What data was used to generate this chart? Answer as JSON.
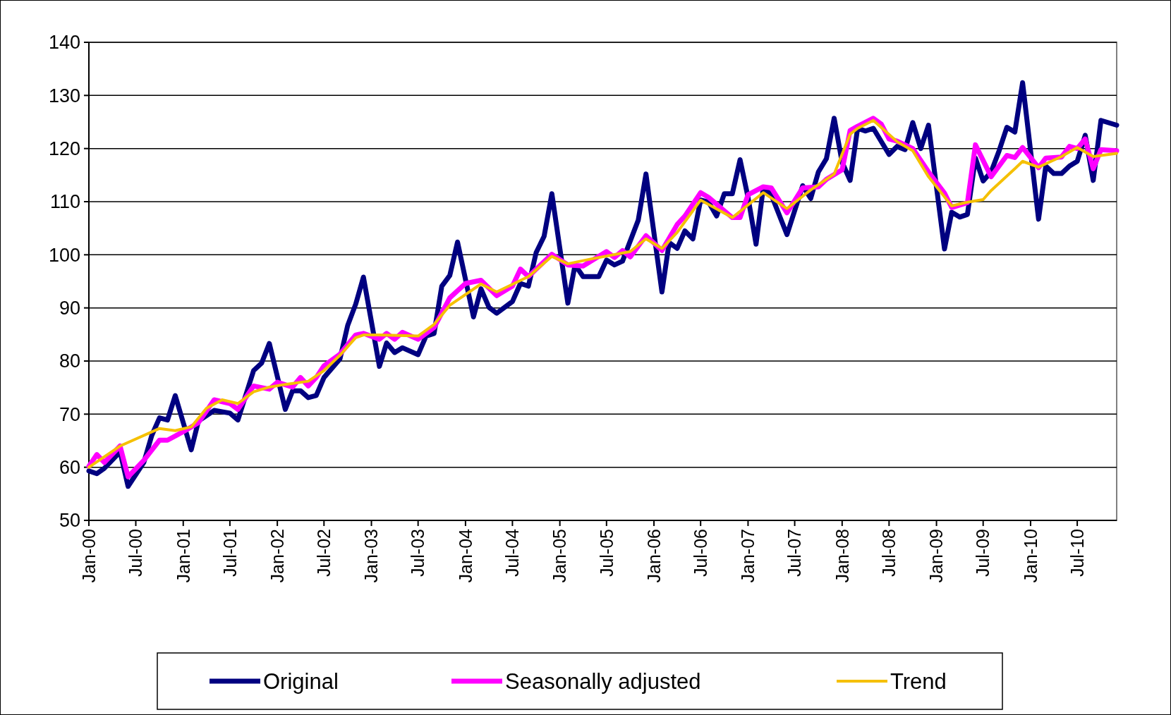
{
  "chart_data": {
    "type": "line",
    "xlim": [
      "2000-01",
      "2010-12"
    ],
    "xticks": [
      {
        "value": "2000-01",
        "label": "Jan-00"
      },
      {
        "value": "2000-07",
        "label": "Jul-00"
      },
      {
        "value": "2001-01",
        "label": "Jan-01"
      },
      {
        "value": "2001-07",
        "label": "Jul-01"
      },
      {
        "value": "2002-01",
        "label": "Jan-02"
      },
      {
        "value": "2002-07",
        "label": "Jul-02"
      },
      {
        "value": "2003-01",
        "label": "Jan-03"
      },
      {
        "value": "2003-07",
        "label": "Jul-03"
      },
      {
        "value": "2004-01",
        "label": "Jan-04"
      },
      {
        "value": "2004-07",
        "label": "Jul-04"
      },
      {
        "value": "2005-01",
        "label": "Jan-05"
      },
      {
        "value": "2005-07",
        "label": "Jul-05"
      },
      {
        "value": "2006-01",
        "label": "Jan-06"
      },
      {
        "value": "2006-07",
        "label": "Jul-06"
      },
      {
        "value": "2007-01",
        "label": "Jan-07"
      },
      {
        "value": "2007-07",
        "label": "Jul-07"
      },
      {
        "value": "2008-01",
        "label": "Jan-08"
      },
      {
        "value": "2008-07",
        "label": "Jul-08"
      },
      {
        "value": "2009-01",
        "label": "Jan-09"
      },
      {
        "value": "2009-07",
        "label": "Jul-09"
      },
      {
        "value": "2010-01",
        "label": "Jan-10"
      },
      {
        "value": "2010-07",
        "label": "Jul-10"
      }
    ],
    "ylim": [
      50,
      140
    ],
    "yticks": [
      50,
      60,
      70,
      80,
      90,
      100,
      110,
      120,
      130,
      140
    ],
    "grid": "y",
    "legend": "bottom",
    "marker": "none",
    "line_style": "solid",
    "series": [
      {
        "name": "Original",
        "color": "#000080",
        "x": [
          "2000-01",
          "2000-02",
          "2000-03",
          "2000-05",
          "2000-06",
          "2000-08",
          "2000-09",
          "2000-10",
          "2000-11",
          "2000-12",
          "2001-02",
          "2001-03",
          "2001-05",
          "2001-07",
          "2001-08",
          "2001-10",
          "2001-11",
          "2001-12",
          "2002-02",
          "2002-03",
          "2002-04",
          "2002-05",
          "2002-06",
          "2002-07",
          "2002-09",
          "2002-10",
          "2002-11",
          "2002-12",
          "2003-02",
          "2003-03",
          "2003-04",
          "2003-05",
          "2003-07",
          "2003-08",
          "2003-09",
          "2003-10",
          "2003-11",
          "2003-12",
          "2004-02",
          "2004-03",
          "2004-04",
          "2004-05",
          "2004-07",
          "2004-08",
          "2004-09",
          "2004-10",
          "2004-11",
          "2004-12",
          "2005-02",
          "2005-03",
          "2005-04",
          "2005-06",
          "2005-07",
          "2005-08",
          "2005-09",
          "2005-11",
          "2005-12",
          "2006-02",
          "2006-03",
          "2006-04",
          "2006-05",
          "2006-06",
          "2006-07",
          "2006-08",
          "2006-09",
          "2006-10",
          "2006-11",
          "2006-12",
          "2007-01",
          "2007-02",
          "2007-03",
          "2007-04",
          "2007-06",
          "2007-08",
          "2007-09",
          "2007-10",
          "2007-11",
          "2007-12",
          "2008-01",
          "2008-02",
          "2008-03",
          "2008-04",
          "2008-05",
          "2008-07",
          "2008-08",
          "2008-09",
          "2008-10",
          "2008-11",
          "2008-12",
          "2009-02",
          "2009-03",
          "2009-04",
          "2009-05",
          "2009-06",
          "2009-07",
          "2009-08",
          "2009-09",
          "2009-10",
          "2009-11",
          "2009-12",
          "2010-02",
          "2010-03",
          "2010-04",
          "2010-05",
          "2010-06",
          "2010-07",
          "2010-08",
          "2010-09",
          "2010-10",
          "2010-12"
        ],
        "values": [
          59.3,
          58.8,
          59.8,
          62.9,
          56.4,
          60.9,
          66,
          69.3,
          68.9,
          73.5,
          63.3,
          68.7,
          70.7,
          70.2,
          68.9,
          78.2,
          79.6,
          83.3,
          70.9,
          74.4,
          74.4,
          73.1,
          73.5,
          76.9,
          80.4,
          86.7,
          90.7,
          95.8,
          79,
          83.4,
          81.6,
          82.5,
          81.2,
          84.7,
          85.2,
          94.1,
          96.1,
          102.4,
          88.3,
          93.6,
          90.1,
          89,
          91.2,
          94.6,
          94.1,
          100.4,
          103.5,
          111.5,
          90.9,
          98.1,
          95.9,
          95.9,
          99,
          98.1,
          98.8,
          106.5,
          115.2,
          93,
          102.3,
          101.2,
          104.5,
          103,
          110.3,
          109.9,
          107.3,
          111.5,
          111.5,
          117.9,
          110.8,
          102,
          112.6,
          111.3,
          103.8,
          113,
          110.6,
          115.6,
          118.1,
          125.7,
          117.4,
          114,
          123.8,
          123.3,
          123.8,
          118.9,
          120.4,
          119.8,
          124.9,
          120,
          124.4,
          101.1,
          108,
          107.1,
          107.6,
          118.2,
          113.9,
          115.6,
          119.6,
          124,
          123.1,
          132.4,
          106.7,
          116.7,
          115.3,
          115.3,
          116.7,
          117.6,
          122.5,
          114,
          125.3,
          124.4
        ]
      },
      {
        "name": "Seasonally adjusted",
        "color": "#ff00ff",
        "x": [
          "2000-01",
          "2000-02",
          "2000-03",
          "2000-05",
          "2000-06",
          "2000-08",
          "2000-10",
          "2000-11",
          "2001-01",
          "2001-03",
          "2001-05",
          "2001-07",
          "2001-08",
          "2001-10",
          "2001-12",
          "2002-01",
          "2002-03",
          "2002-04",
          "2002-05",
          "2002-06",
          "2002-07",
          "2002-09",
          "2002-11",
          "2002-12",
          "2003-02",
          "2003-03",
          "2003-04",
          "2003-05",
          "2003-07",
          "2003-09",
          "2003-11",
          "2004-01",
          "2004-03",
          "2004-05",
          "2004-07",
          "2004-08",
          "2004-09",
          "2004-12",
          "2005-02",
          "2005-04",
          "2005-07",
          "2005-08",
          "2005-09",
          "2005-10",
          "2005-12",
          "2006-02",
          "2006-04",
          "2006-05",
          "2006-07",
          "2006-08",
          "2006-11",
          "2006-12",
          "2007-01",
          "2007-03",
          "2007-04",
          "2007-06",
          "2007-08",
          "2007-10",
          "2007-11",
          "2008-01",
          "2008-02",
          "2008-03",
          "2008-05",
          "2008-06",
          "2008-07",
          "2008-08",
          "2008-10",
          "2008-12",
          "2009-02",
          "2009-03",
          "2009-05",
          "2009-06",
          "2009-08",
          "2009-10",
          "2009-11",
          "2009-12",
          "2010-02",
          "2010-03",
          "2010-05",
          "2010-06",
          "2010-07",
          "2010-08",
          "2010-09",
          "2010-10",
          "2010-12"
        ],
        "values": [
          60.2,
          62.4,
          60.9,
          64,
          58.2,
          61.3,
          65.1,
          65.1,
          66.7,
          68.4,
          72.7,
          72,
          70.9,
          75.3,
          74.7,
          76,
          75.1,
          76.9,
          75.3,
          76.9,
          79.1,
          81.3,
          84.9,
          85.2,
          84.1,
          85.2,
          84.1,
          85.4,
          84.1,
          86.3,
          91.9,
          94.6,
          95.2,
          92.3,
          94.1,
          97.3,
          95.9,
          100.1,
          98.1,
          97.9,
          100.6,
          99.5,
          100.8,
          99.6,
          103.6,
          100.8,
          105.7,
          107.3,
          111.7,
          110.8,
          107,
          107,
          111.3,
          112.8,
          112.6,
          107.9,
          112.6,
          112.8,
          114.2,
          116,
          123.4,
          124.2,
          125.7,
          124.6,
          121.8,
          121.4,
          120,
          115.6,
          111.6,
          108.9,
          109.8,
          120.7,
          114.7,
          118.7,
          118.3,
          120.2,
          116.4,
          118.2,
          118.4,
          120.4,
          120,
          121.8,
          116.2,
          119.8,
          119.6
        ]
      },
      {
        "name": "Trend",
        "color": "#f5c000",
        "x": [
          "2000-01",
          "2000-05",
          "2000-10",
          "2000-12",
          "2001-02",
          "2001-04",
          "2001-06",
          "2001-08",
          "2001-10",
          "2001-12",
          "2002-02",
          "2002-05",
          "2002-07",
          "2002-09",
          "2002-11",
          "2002-12",
          "2003-02",
          "2003-07",
          "2003-09",
          "2003-11",
          "2004-03",
          "2004-05",
          "2004-09",
          "2004-12",
          "2005-02",
          "2005-05",
          "2005-10",
          "2005-12",
          "2006-02",
          "2006-04",
          "2006-07",
          "2006-11",
          "2007-03",
          "2007-06",
          "2007-09",
          "2007-12",
          "2008-02",
          "2008-03",
          "2008-05",
          "2008-08",
          "2008-10",
          "2008-12",
          "2009-03",
          "2009-05",
          "2009-07",
          "2009-08",
          "2009-11",
          "2009-12",
          "2010-02",
          "2010-05",
          "2010-07",
          "2010-09",
          "2010-12"
        ],
        "values": [
          60,
          64,
          67.3,
          66.9,
          67.6,
          71.1,
          72.7,
          72,
          74.2,
          75.1,
          75.6,
          76.2,
          78.2,
          81.1,
          84.4,
          84.9,
          84.9,
          84.7,
          86.9,
          90.5,
          94.5,
          93,
          95.9,
          99.7,
          98.3,
          99.2,
          100.6,
          103,
          101.2,
          104.2,
          110.3,
          107,
          111.7,
          108.7,
          112.2,
          115.2,
          122.7,
          123.8,
          125.3,
          121.3,
          119.6,
          114.7,
          109.2,
          109.9,
          110.4,
          112.1,
          116.2,
          117.6,
          116.5,
          118.5,
          120.2,
          118.5,
          119.1
        ]
      }
    ]
  }
}
